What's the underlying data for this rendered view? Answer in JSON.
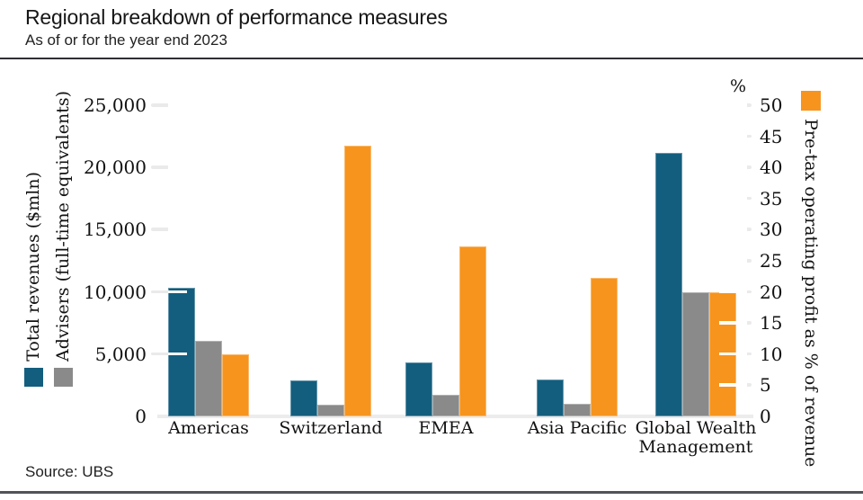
{
  "header": {
    "title": "Regional breakdown of performance measures",
    "subtitle": "As of or for the year end 2023"
  },
  "footer": {
    "source": "Source: UBS"
  },
  "colors": {
    "revenue_teal": "#135e7e",
    "advisers_gray": "#8a8a8a",
    "profit_orange": "#f7941d",
    "tick_gray": "#eaeaea",
    "rule_dark": "#2e2e34",
    "rule_bottom": "#50535a"
  },
  "chart_data": {
    "type": "bar",
    "title": "Regional breakdown of performance measures",
    "subtitle": "As of or for the year end 2023",
    "source": "Source: UBS",
    "grid": "ticks-only",
    "legend_position": "left-vertical-and-right-vertical",
    "categories": [
      "Americas",
      "Switzerland",
      "EMEA",
      "Asia Pacific",
      "Global Wealth Management"
    ],
    "series": [
      {
        "name": "Total revenues ($mln)",
        "axis": "left",
        "color": "#135e7e",
        "values": [
          10350,
          2900,
          4350,
          2950,
          21200
        ]
      },
      {
        "name": "Advisers (full-time equivalents)",
        "axis": "left",
        "color": "#8a8a8a",
        "values": [
          6100,
          950,
          1700,
          1000,
          10000
        ]
      },
      {
        "name": "Pre-tax operating profit as % of revenue",
        "axis": "right",
        "color": "#f7941d",
        "values": [
          10,
          43.5,
          27.3,
          22.3,
          20
        ]
      }
    ],
    "left_axis": {
      "label_1": "Total revenues ($mln)",
      "label_2": "Advisers (full-time equivalents)",
      "ticks": [
        "0",
        "5,000",
        "10,000",
        "15,000",
        "20,000",
        "25,000"
      ],
      "min": 0,
      "max": 25000,
      "step": 5000
    },
    "right_axis": {
      "unit": "%",
      "label": "Pre-tax operating profit as % of revenue",
      "ticks": [
        "0",
        "5",
        "10",
        "15",
        "20",
        "25",
        "30",
        "35",
        "40",
        "45",
        "50"
      ],
      "min": 0,
      "max": 50,
      "step": 5
    }
  }
}
